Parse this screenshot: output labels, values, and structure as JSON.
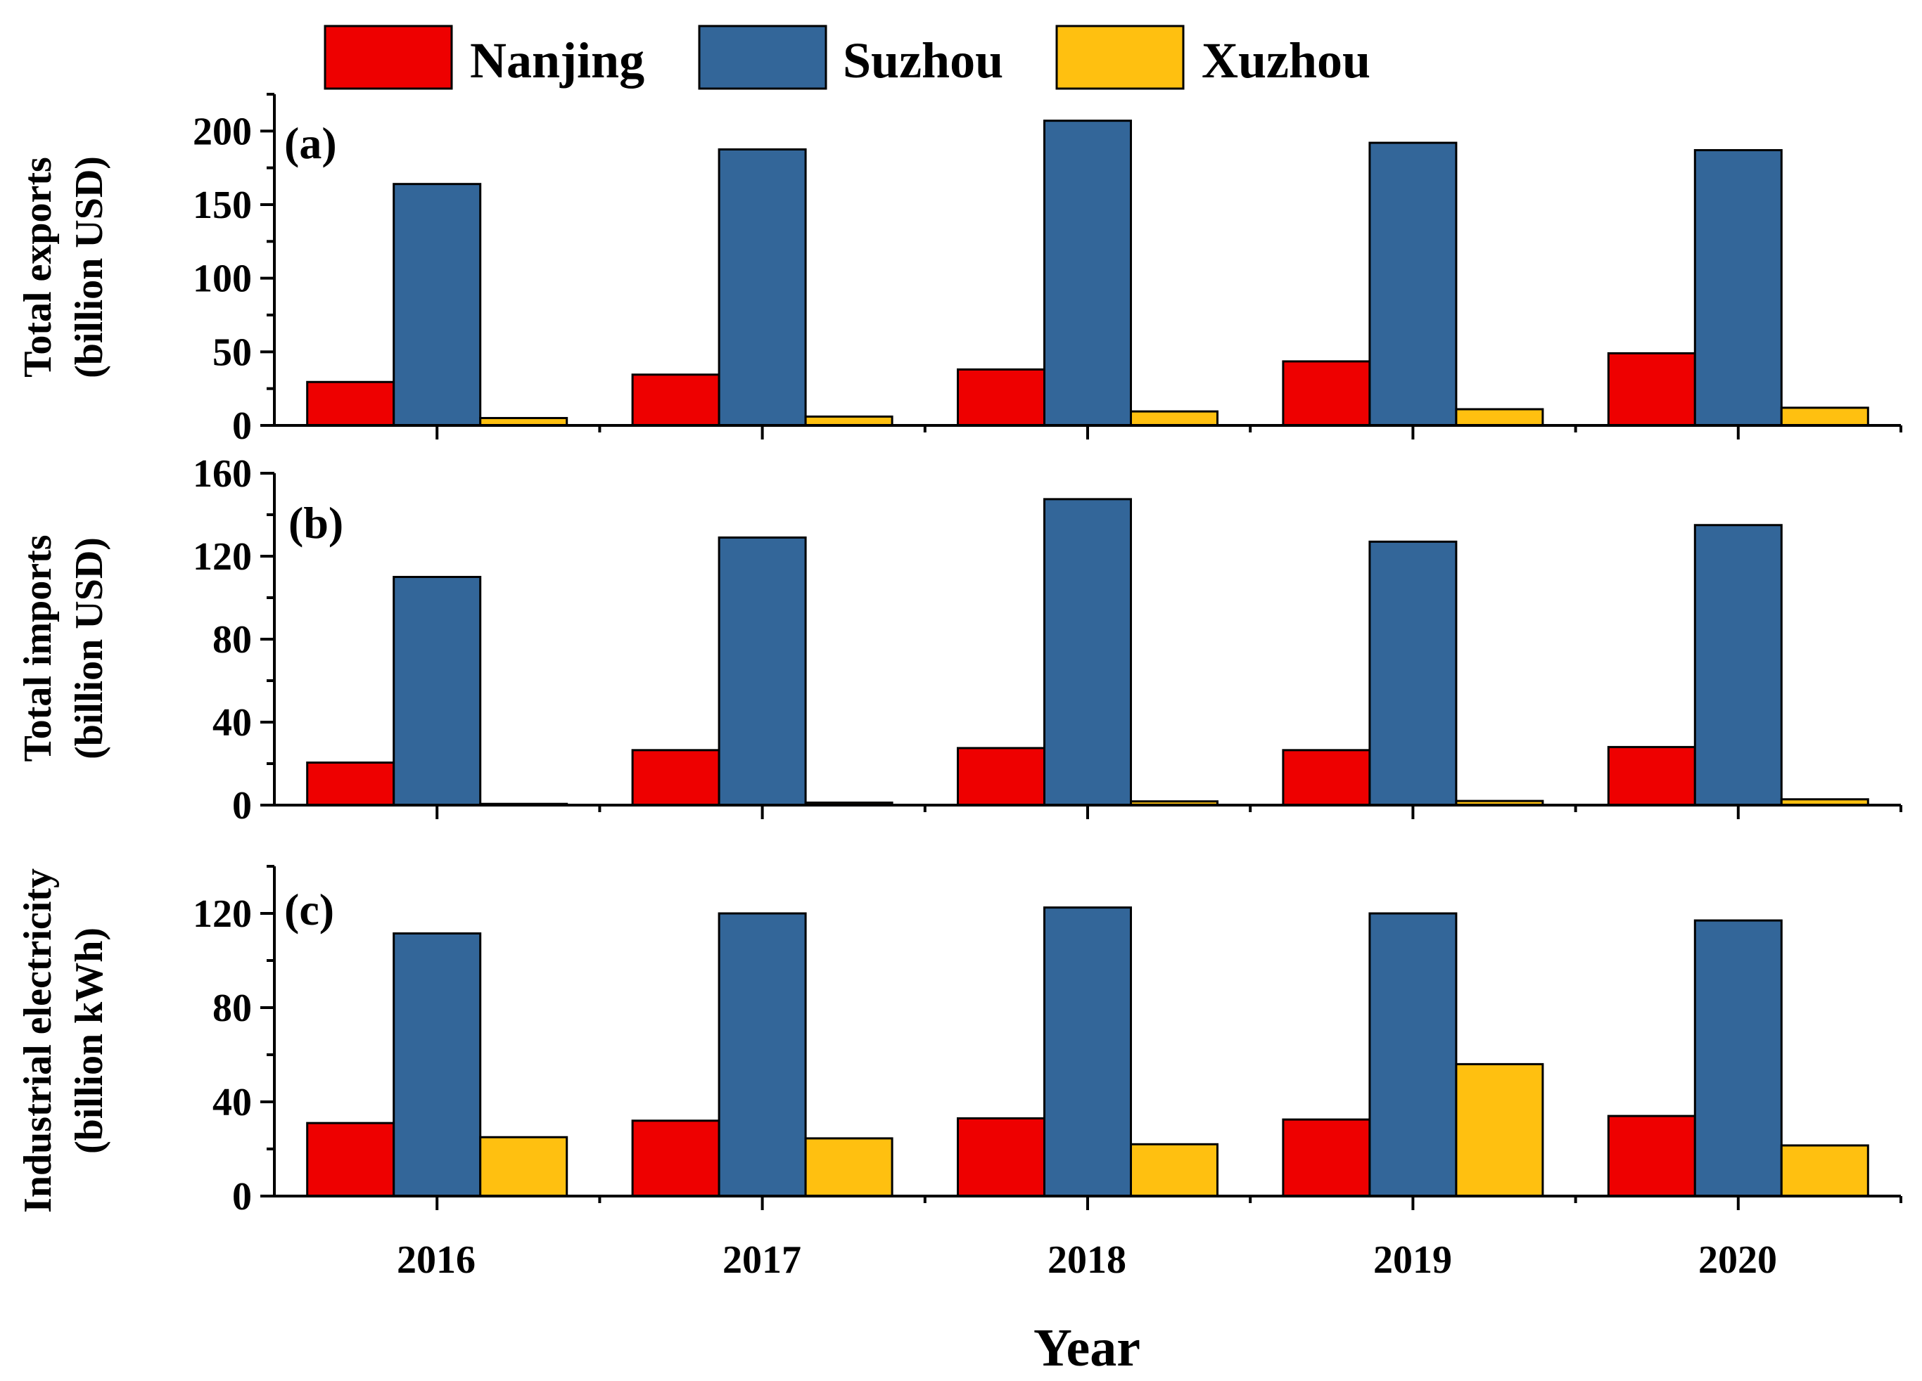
{
  "chart_data": [
    {
      "type": "bar",
      "panel": "(a)",
      "ylabel_line1": "Total exports",
      "ylabel_line2": "(billion USD)",
      "categories": [
        "2016",
        "2017",
        "2018",
        "2019",
        "2020"
      ],
      "ylim": [
        0,
        225
      ],
      "yticks": [
        0,
        50,
        100,
        150,
        200
      ],
      "series": [
        {
          "name": "Nanjing",
          "values": [
            29.5,
            34.5,
            38,
            43.5,
            49
          ]
        },
        {
          "name": "Suzhou",
          "values": [
            164,
            187.5,
            207,
            192,
            187
          ]
        },
        {
          "name": "Xuzhou",
          "values": [
            5,
            6,
            9.5,
            11,
            12
          ]
        }
      ]
    },
    {
      "type": "bar",
      "panel": "(b)",
      "ylabel_line1": "Total imports",
      "ylabel_line2": "(billion USD)",
      "categories": [
        "2016",
        "2017",
        "2018",
        "2019",
        "2020"
      ],
      "ylim": [
        0,
        160
      ],
      "yticks": [
        0,
        40,
        80,
        120,
        160
      ],
      "series": [
        {
          "name": "Nanjing",
          "values": [
            20.5,
            26.5,
            27.5,
            26.5,
            28
          ]
        },
        {
          "name": "Suzhou",
          "values": [
            110,
            129,
            147.5,
            127,
            135
          ]
        },
        {
          "name": "Xuzhou",
          "values": [
            0.6,
            1.2,
            1.8,
            2,
            2.8
          ]
        }
      ]
    },
    {
      "type": "bar",
      "panel": "(c)",
      "ylabel_line1": "Industrial electricity",
      "ylabel_line2": "(billion kWh)",
      "categories": [
        "2016",
        "2017",
        "2018",
        "2019",
        "2020"
      ],
      "ylim": [
        0,
        140
      ],
      "yticks": [
        0,
        40,
        80,
        120
      ],
      "series": [
        {
          "name": "Nanjing",
          "values": [
            31,
            32,
            33,
            32.5,
            34
          ]
        },
        {
          "name": "Suzhou",
          "values": [
            111.5,
            120,
            122.5,
            120,
            117
          ]
        },
        {
          "name": "Xuzhou",
          "values": [
            25,
            24.5,
            22,
            56,
            21.5
          ]
        }
      ]
    }
  ],
  "legend": {
    "entries": [
      "Nanjing",
      "Suzhou",
      "Xuzhou"
    ]
  },
  "colors": {
    "Nanjing": "#ee0000",
    "Suzhou": "#336699",
    "Xuzhou": "#ffc010"
  },
  "xaxis": {
    "title": "Year",
    "tick_labels": [
      "2016",
      "2017",
      "2018",
      "2019",
      "2020"
    ]
  }
}
